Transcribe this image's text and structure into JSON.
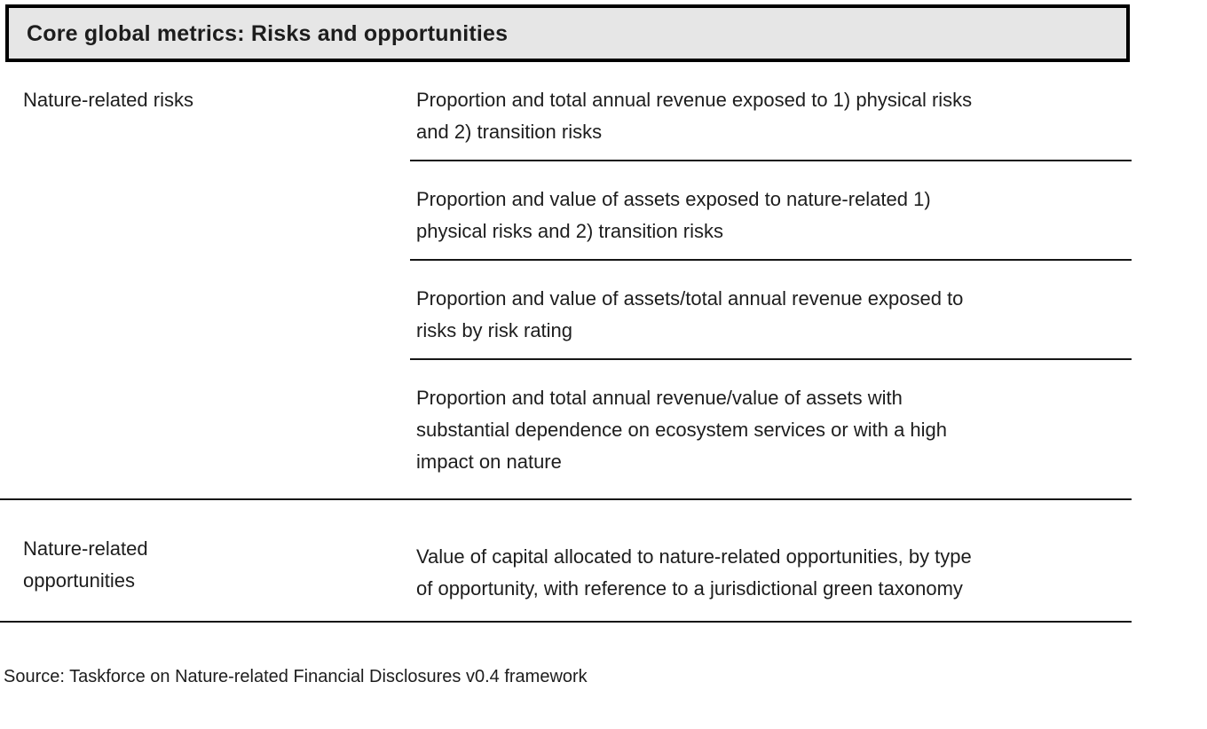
{
  "header": {
    "title": "Core global metrics: Risks and opportunities"
  },
  "table": {
    "groups": [
      {
        "category": "Nature-related risks",
        "metrics": [
          "Proportion and total annual revenue exposed to 1) physical risks\nand 2) transition risks",
          "Proportion and value of assets exposed to nature-related 1)\nphysical risks and 2) transition risks",
          "Proportion and value of assets/total annual revenue exposed to\nrisks by risk rating",
          "Proportion and total annual revenue/value of assets with\nsubstantial dependence on ecosystem services or with a high\nimpact on nature"
        ]
      },
      {
        "category": "Nature-related\nopportunities",
        "metrics": [
          "Value of capital allocated to nature-related opportunities, by type\nof opportunity, with reference to a jurisdictional green taxonomy"
        ]
      }
    ]
  },
  "source": "Source: Taskforce on Nature-related Financial Disclosures v0.4 framework",
  "colors": {
    "text": "#1d1d1d",
    "line": "#161616",
    "header_bg": "#e6e6e6",
    "header_border": "#000000"
  }
}
